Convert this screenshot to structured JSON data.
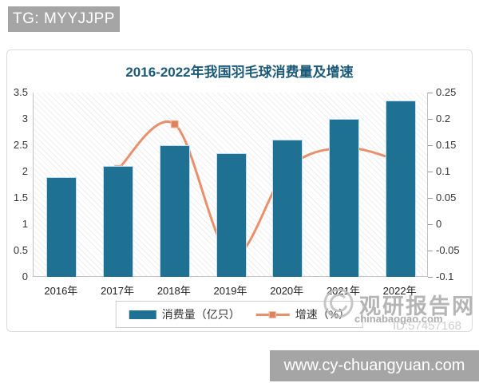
{
  "overlays": {
    "tg_badge": "TG: MYYJJPP",
    "url_badge": "www.cy-chuangyuan.com"
  },
  "watermark": {
    "site_name": "观研报告网",
    "site_domain": "chinabaogao.com",
    "id_text": "ID:57457168"
  },
  "chart_data": {
    "type": "bar",
    "title": "2016-2022年我国羽毛球消费量及增速",
    "categories": [
      "2016年",
      "2017年",
      "2018年",
      "2019年",
      "2020年",
      "2021年",
      "2022年"
    ],
    "series": [
      {
        "name": "消费量（亿只）",
        "type": "bar",
        "axis": "left",
        "values": [
          1.9,
          2.1,
          2.5,
          2.35,
          2.6,
          3.0,
          3.35
        ]
      },
      {
        "name": "增速（%）",
        "type": "line",
        "axis": "right",
        "values": [
          null,
          0.105,
          0.19,
          -0.06,
          0.105,
          0.145,
          0.12
        ]
      }
    ],
    "left_axis": {
      "min": 0,
      "max": 3.5,
      "tick_values": [
        0,
        0.5,
        1,
        1.5,
        2,
        2.5,
        3,
        3.5
      ],
      "tick_labels": [
        "0",
        "0.5",
        "1",
        "1.5",
        "2",
        "2.5",
        "3",
        "3.5"
      ]
    },
    "right_axis": {
      "min": -0.1,
      "max": 0.25,
      "tick_values": [
        -0.1,
        -0.05,
        0,
        0.05,
        0.1,
        0.15,
        0.2,
        0.25
      ],
      "tick_labels": [
        "-0.1",
        "-0.05",
        "0",
        "0.05",
        "0.1",
        "0.15",
        "0.2",
        "0.25"
      ]
    },
    "legend_position": "bottom",
    "grid": false,
    "colors": {
      "bar": "#1E7193",
      "bar_border": "#BFE0EC",
      "line": "#E8906C",
      "marker": "#DF815E",
      "marker_border": "#F2C2AA",
      "title": "#1C5A78"
    }
  }
}
